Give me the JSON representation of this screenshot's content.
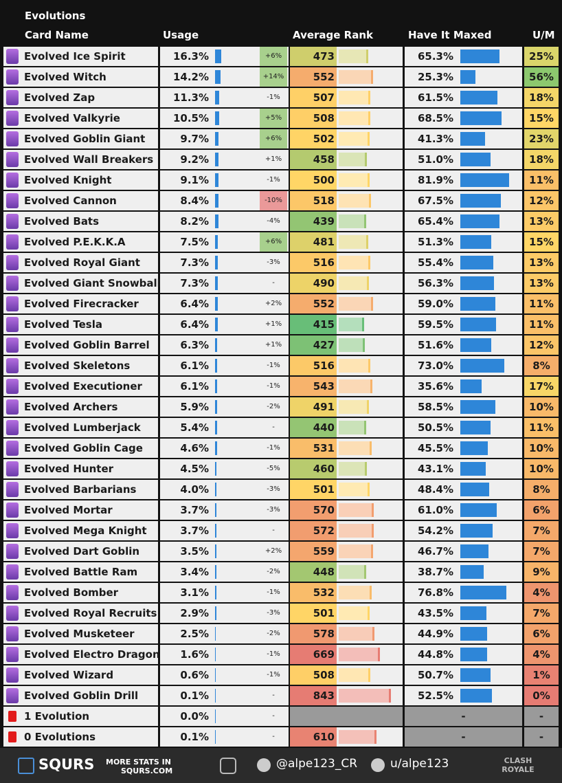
{
  "header": {
    "title": "Evolutions",
    "columns": [
      "Card Name",
      "Usage",
      "Average Rank",
      "Have It Maxed",
      "U/M"
    ]
  },
  "table": {
    "rows": [
      [
        "Evolved Ice Spirit",
        "16.3%",
        "+6%",
        473,
        "65.3%",
        "25%"
      ],
      [
        "Evolved Witch",
        "14.2%",
        "+14%",
        552,
        "25.3%",
        "56%"
      ],
      [
        "Evolved Zap",
        "11.3%",
        "-1%",
        507,
        "61.5%",
        "18%"
      ],
      [
        "Evolved Valkyrie",
        "10.5%",
        "+5%",
        508,
        "68.5%",
        "15%"
      ],
      [
        "Evolved Goblin Giant",
        "9.7%",
        "+6%",
        502,
        "41.3%",
        "23%"
      ],
      [
        "Evolved Wall Breakers",
        "9.2%",
        "+1%",
        458,
        "51.0%",
        "18%"
      ],
      [
        "Evolved Knight",
        "9.1%",
        "-1%",
        500,
        "81.9%",
        "11%"
      ],
      [
        "Evolved Cannon",
        "8.4%",
        "-10%",
        518,
        "67.5%",
        "12%"
      ],
      [
        "Evolved Bats",
        "8.2%",
        "-4%",
        439,
        "65.4%",
        "13%"
      ],
      [
        "Evolved P.E.K.K.A",
        "7.5%",
        "+6%",
        481,
        "51.3%",
        "15%"
      ],
      [
        "Evolved Royal Giant",
        "7.3%",
        "-3%",
        516,
        "55.4%",
        "13%"
      ],
      [
        "Evolved Giant Snowball",
        "7.3%",
        "-",
        490,
        "56.3%",
        "13%"
      ],
      [
        "Evolved Firecracker",
        "6.4%",
        "+2%",
        552,
        "59.0%",
        "11%"
      ],
      [
        "Evolved Tesla",
        "6.4%",
        "+1%",
        415,
        "59.5%",
        "11%"
      ],
      [
        "Evolved Goblin Barrel",
        "6.3%",
        "+1%",
        427,
        "51.6%",
        "12%"
      ],
      [
        "Evolved Skeletons",
        "6.1%",
        "-1%",
        516,
        "73.0%",
        "8%"
      ],
      [
        "Evolved Executioner",
        "6.1%",
        "-1%",
        543,
        "35.6%",
        "17%"
      ],
      [
        "Evolved Archers",
        "5.9%",
        "-2%",
        491,
        "58.5%",
        "10%"
      ],
      [
        "Evolved Lumberjack",
        "5.4%",
        "-",
        440,
        "50.5%",
        "11%"
      ],
      [
        "Evolved Goblin Cage",
        "4.6%",
        "-1%",
        531,
        "45.5%",
        "10%"
      ],
      [
        "Evolved Hunter",
        "4.5%",
        "-5%",
        460,
        "43.1%",
        "10%"
      ],
      [
        "Evolved Barbarians",
        "4.0%",
        "-3%",
        501,
        "48.4%",
        "8%"
      ],
      [
        "Evolved Mortar",
        "3.7%",
        "-3%",
        570,
        "61.0%",
        "6%"
      ],
      [
        "Evolved Mega Knight",
        "3.7%",
        "-",
        572,
        "54.2%",
        "7%"
      ],
      [
        "Evolved Dart Goblin",
        "3.5%",
        "+2%",
        559,
        "46.7%",
        "7%"
      ],
      [
        "Evolved Battle Ram",
        "3.4%",
        "-2%",
        448,
        "38.7%",
        "9%"
      ],
      [
        "Evolved Bomber",
        "3.1%",
        "-1%",
        532,
        "76.8%",
        "4%"
      ],
      [
        "Evolved Royal Recruits",
        "2.9%",
        "-3%",
        501,
        "43.5%",
        "7%"
      ],
      [
        "Evolved Musketeer",
        "2.5%",
        "-2%",
        578,
        "44.9%",
        "6%"
      ],
      [
        "Evolved Electro Dragon",
        "1.6%",
        "-1%",
        669,
        "44.8%",
        "4%"
      ],
      [
        "Evolved Wizard",
        "0.6%",
        "-1%",
        508,
        "50.7%",
        "1%"
      ],
      [
        "Evolved Goblin Drill",
        "0.1%",
        "-",
        843,
        "52.5%",
        "0%"
      ],
      [
        "1 Evolution",
        "0.0%",
        "-",
        null,
        "-",
        "-"
      ],
      [
        "0 Evolutions",
        "0.1%",
        "-",
        610,
        "-",
        "-"
      ]
    ]
  },
  "footer": {
    "brand": "SQURS",
    "more_stats": "MORE STATS IN",
    "site": "SQURS.COM",
    "twitter": "@alpe123_CR",
    "reddit": "u/alpe123",
    "game": "CLASH ROYALE"
  }
}
